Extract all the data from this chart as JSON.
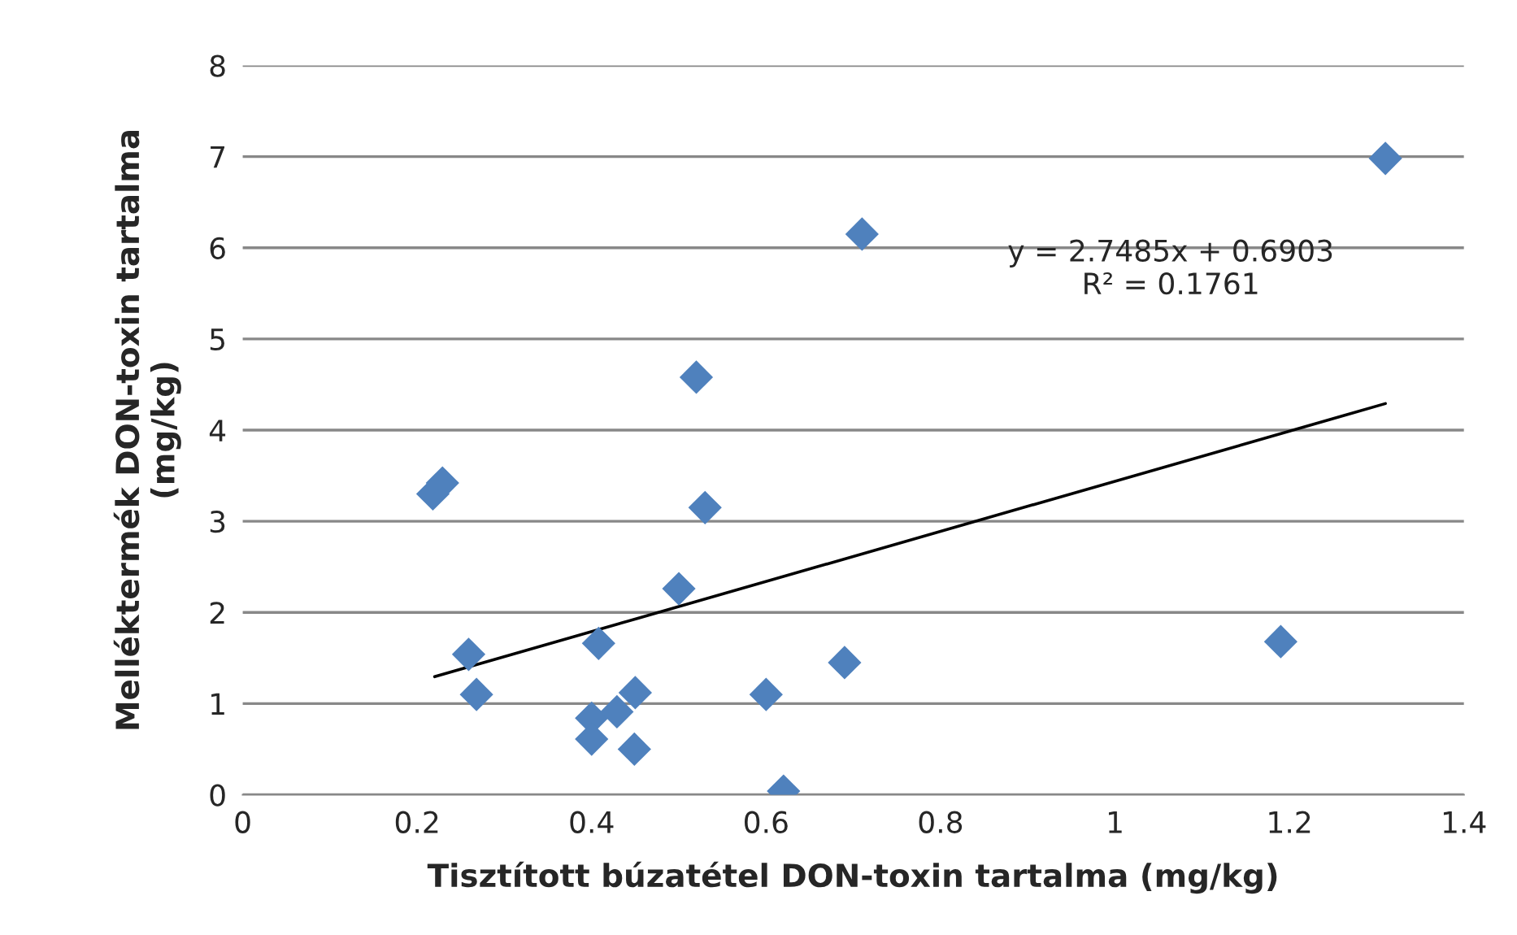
{
  "chart_data": {
    "type": "scatter",
    "xlabel": "Tisztított búzatétel DON-toxin tartalma (mg/kg)",
    "ylabel": "Melléktermék DON-toxin tartalma\n(mg/kg)",
    "series": [
      {
        "color": "#4f81bd",
        "marker": "diamond",
        "x": [
          0.218,
          0.229,
          0.259,
          0.268,
          0.4,
          0.4,
          0.408,
          0.429,
          0.45,
          0.449,
          0.5,
          0.52,
          0.53,
          0.6,
          0.62,
          0.69,
          0.71,
          1.19,
          1.31
        ],
        "values": [
          3.3,
          3.42,
          1.54,
          1.1,
          0.84,
          0.61,
          1.66,
          0.91,
          1.12,
          0.5,
          2.26,
          4.58,
          3.15,
          1.1,
          0.04,
          1.45,
          6.15,
          1.68,
          6.98
        ]
      },
      {
        "type": "line",
        "color": "#000000",
        "marker": "none",
        "x": [
          0.22,
          1.31
        ],
        "values": [
          1.295,
          4.291
        ]
      }
    ],
    "annotations": [
      "y = 2.7485x + 0.6903\nR² = 0.1761"
    ],
    "xlim": [
      0,
      1.4
    ],
    "xticks": [
      0,
      0.2,
      0.4,
      0.6,
      0.8,
      1,
      1.2,
      1.4
    ],
    "ylim": [
      0,
      8
    ],
    "yticks": [
      0,
      1,
      2,
      3,
      4,
      5,
      6,
      7,
      8
    ],
    "grid": "y",
    "legend": false
  }
}
